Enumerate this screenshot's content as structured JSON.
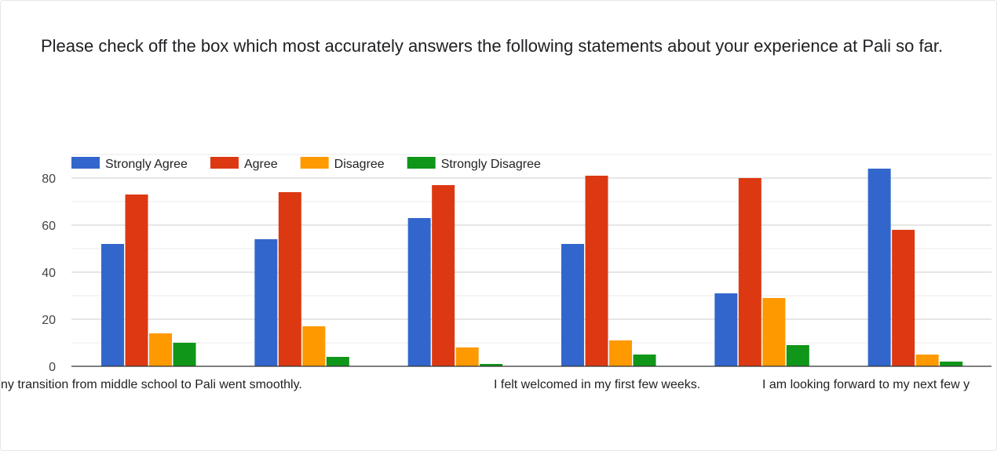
{
  "question": {
    "text": "Please check off the box which most accurately answers the following statements about your experience at Pali so far."
  },
  "chart_data": {
    "type": "bar",
    "title": "",
    "xlabel": "",
    "ylabel": "",
    "ylim": [
      0,
      90
    ],
    "yticks": [
      0,
      20,
      40,
      60,
      80
    ],
    "grid": true,
    "legend_position": "top-left",
    "categories": [
      "My transition from middle school to Pali went smoothly.",
      "",
      "",
      "I felt welcomed in my first few weeks.",
      "",
      "I am looking forward to my next few years at Pali."
    ],
    "visible_category_labels": [
      "ny transition from middle school to Pali went smoothly.",
      "I felt welcomed in my first few weeks.",
      "I am looking forward to my next few y"
    ],
    "series": [
      {
        "name": "Strongly Agree",
        "color": "#3366cc",
        "values": [
          52,
          54,
          63,
          52,
          31,
          84
        ]
      },
      {
        "name": "Agree",
        "color": "#dc3912",
        "values": [
          73,
          74,
          77,
          81,
          80,
          58
        ]
      },
      {
        "name": "Disagree",
        "color": "#ff9900",
        "values": [
          14,
          17,
          8,
          11,
          29,
          5
        ]
      },
      {
        "name": "Strongly Disagree",
        "color": "#109618",
        "values": [
          10,
          4,
          1,
          5,
          9,
          2
        ]
      }
    ]
  }
}
